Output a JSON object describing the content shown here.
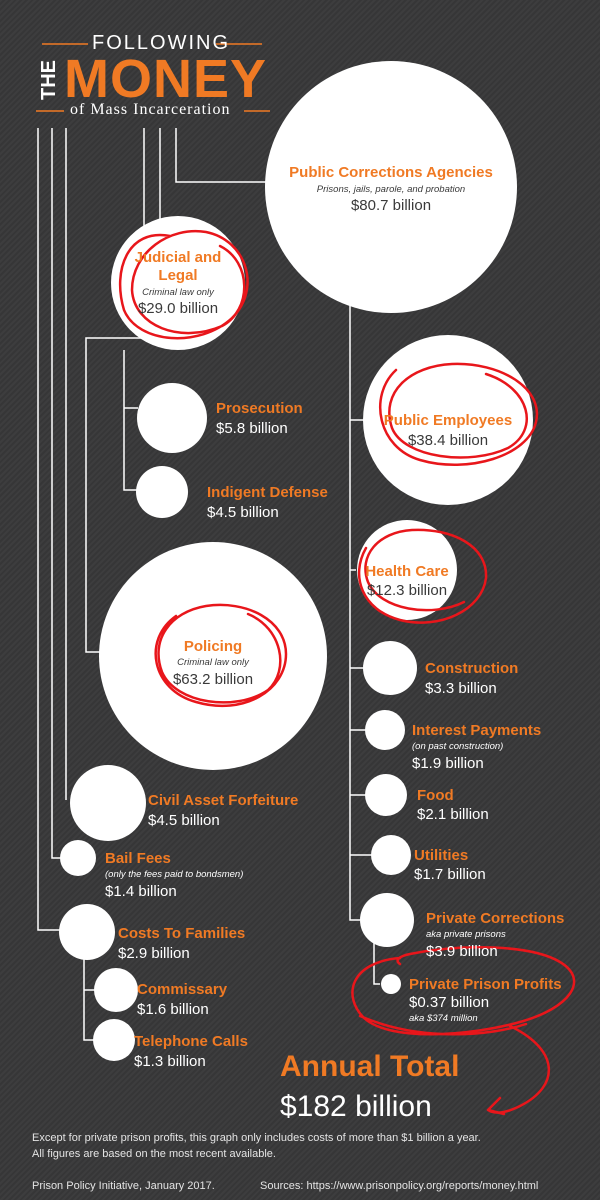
{
  "header": {
    "following": "FOLLOWING",
    "the": "THE",
    "money": "MONEY",
    "subtitle": "of Mass Incarceration"
  },
  "nodes": {
    "public_corrections": {
      "title": "Public Corrections Agencies",
      "note": "Prisons, jails, parole, and probation",
      "value": "$80.7 billion"
    },
    "judicial": {
      "title_line1": "Judicial and",
      "title_line2": "Legal",
      "note": "Criminal law only",
      "value": "$29.0 billion"
    },
    "prosecution": {
      "title": "Prosecution",
      "value": "$5.8 billion"
    },
    "indigent_defense": {
      "title": "Indigent Defense",
      "value": "$4.5 billion"
    },
    "public_employees": {
      "title": "Public Employees",
      "value": "$38.4 billion"
    },
    "health_care": {
      "title": "Health Care",
      "value": "$12.3 billion"
    },
    "policing": {
      "title": "Policing",
      "note": "Criminal law only",
      "value": "$63.2 billion"
    },
    "construction": {
      "title": "Construction",
      "value": "$3.3 billion"
    },
    "interest_payments": {
      "title": "Interest Payments",
      "note": "(on past construction)",
      "value": "$1.9 billion"
    },
    "food": {
      "title": "Food",
      "value": "$2.1 billion"
    },
    "utilities": {
      "title": "Utilities",
      "value": "$1.7 billion"
    },
    "private_corrections": {
      "title": "Private Corrections",
      "note": "aka private prisons",
      "value": "$3.9 billion"
    },
    "private_prison_profits": {
      "title": "Private Prison Profits",
      "value": "$0.37 billion",
      "note": "aka $374 million"
    },
    "civil_asset_forfeiture": {
      "title": "Civil Asset Forfeiture",
      "value": "$4.5 billion"
    },
    "bail_fees": {
      "title": "Bail Fees",
      "note": "(only the fees paid to bondsmen)",
      "value": "$1.4 billion"
    },
    "costs_to_families": {
      "title": "Costs To Families",
      "value": "$2.9 billion"
    },
    "commissary": {
      "title": "Commissary",
      "value": "$1.6 billion"
    },
    "telephone_calls": {
      "title": "Telephone Calls",
      "value": "$1.3 billion"
    }
  },
  "total": {
    "label": "Annual Total",
    "value": "$182 billion"
  },
  "footnote_line1": "Except for private prison profits, this graph only includes costs of more than $1 billion a year.",
  "footnote_line2": "All figures are based on the most recent available.",
  "credit": "Prison Policy Initiative, January 2017.",
  "sources": "Sources: https://www.prisonpolicy.org/reports/money.html",
  "colors": {
    "background": "#3a3a3b",
    "accent": "#f07a24",
    "circle": "#ffffff",
    "connector": "#ffffff",
    "annotation": "#e8161b"
  }
}
